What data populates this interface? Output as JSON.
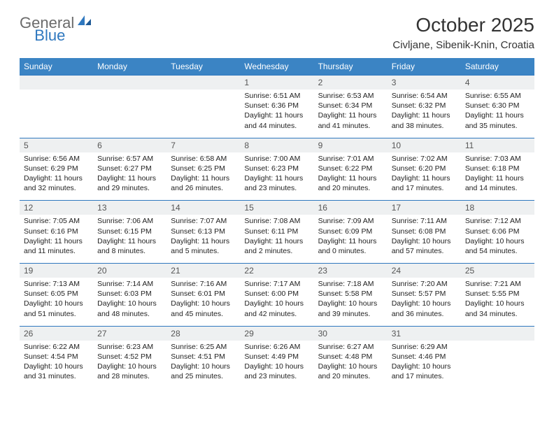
{
  "brand": {
    "part1": "General",
    "part2": "Blue"
  },
  "title": "October 2025",
  "location": "Civljane, Sibenik-Knin, Croatia",
  "colors": {
    "header_bg": "#3b84c4",
    "header_text": "#ffffff",
    "daynum_bg": "#eef0f1",
    "border": "#2f78bf",
    "logo_gray": "#6b6b6b",
    "logo_blue": "#2f78bf"
  },
  "weekdays": [
    "Sunday",
    "Monday",
    "Tuesday",
    "Wednesday",
    "Thursday",
    "Friday",
    "Saturday"
  ],
  "weeks": [
    {
      "nums": [
        "",
        "",
        "",
        "1",
        "2",
        "3",
        "4"
      ],
      "cells": [
        {},
        {},
        {},
        {
          "sunrise": "Sunrise: 6:51 AM",
          "sunset": "Sunset: 6:36 PM",
          "day1": "Daylight: 11 hours",
          "day2": "and 44 minutes."
        },
        {
          "sunrise": "Sunrise: 6:53 AM",
          "sunset": "Sunset: 6:34 PM",
          "day1": "Daylight: 11 hours",
          "day2": "and 41 minutes."
        },
        {
          "sunrise": "Sunrise: 6:54 AM",
          "sunset": "Sunset: 6:32 PM",
          "day1": "Daylight: 11 hours",
          "day2": "and 38 minutes."
        },
        {
          "sunrise": "Sunrise: 6:55 AM",
          "sunset": "Sunset: 6:30 PM",
          "day1": "Daylight: 11 hours",
          "day2": "and 35 minutes."
        }
      ]
    },
    {
      "nums": [
        "5",
        "6",
        "7",
        "8",
        "9",
        "10",
        "11"
      ],
      "cells": [
        {
          "sunrise": "Sunrise: 6:56 AM",
          "sunset": "Sunset: 6:29 PM",
          "day1": "Daylight: 11 hours",
          "day2": "and 32 minutes."
        },
        {
          "sunrise": "Sunrise: 6:57 AM",
          "sunset": "Sunset: 6:27 PM",
          "day1": "Daylight: 11 hours",
          "day2": "and 29 minutes."
        },
        {
          "sunrise": "Sunrise: 6:58 AM",
          "sunset": "Sunset: 6:25 PM",
          "day1": "Daylight: 11 hours",
          "day2": "and 26 minutes."
        },
        {
          "sunrise": "Sunrise: 7:00 AM",
          "sunset": "Sunset: 6:23 PM",
          "day1": "Daylight: 11 hours",
          "day2": "and 23 minutes."
        },
        {
          "sunrise": "Sunrise: 7:01 AM",
          "sunset": "Sunset: 6:22 PM",
          "day1": "Daylight: 11 hours",
          "day2": "and 20 minutes."
        },
        {
          "sunrise": "Sunrise: 7:02 AM",
          "sunset": "Sunset: 6:20 PM",
          "day1": "Daylight: 11 hours",
          "day2": "and 17 minutes."
        },
        {
          "sunrise": "Sunrise: 7:03 AM",
          "sunset": "Sunset: 6:18 PM",
          "day1": "Daylight: 11 hours",
          "day2": "and 14 minutes."
        }
      ]
    },
    {
      "nums": [
        "12",
        "13",
        "14",
        "15",
        "16",
        "17",
        "18"
      ],
      "cells": [
        {
          "sunrise": "Sunrise: 7:05 AM",
          "sunset": "Sunset: 6:16 PM",
          "day1": "Daylight: 11 hours",
          "day2": "and 11 minutes."
        },
        {
          "sunrise": "Sunrise: 7:06 AM",
          "sunset": "Sunset: 6:15 PM",
          "day1": "Daylight: 11 hours",
          "day2": "and 8 minutes."
        },
        {
          "sunrise": "Sunrise: 7:07 AM",
          "sunset": "Sunset: 6:13 PM",
          "day1": "Daylight: 11 hours",
          "day2": "and 5 minutes."
        },
        {
          "sunrise": "Sunrise: 7:08 AM",
          "sunset": "Sunset: 6:11 PM",
          "day1": "Daylight: 11 hours",
          "day2": "and 2 minutes."
        },
        {
          "sunrise": "Sunrise: 7:09 AM",
          "sunset": "Sunset: 6:09 PM",
          "day1": "Daylight: 11 hours",
          "day2": "and 0 minutes."
        },
        {
          "sunrise": "Sunrise: 7:11 AM",
          "sunset": "Sunset: 6:08 PM",
          "day1": "Daylight: 10 hours",
          "day2": "and 57 minutes."
        },
        {
          "sunrise": "Sunrise: 7:12 AM",
          "sunset": "Sunset: 6:06 PM",
          "day1": "Daylight: 10 hours",
          "day2": "and 54 minutes."
        }
      ]
    },
    {
      "nums": [
        "19",
        "20",
        "21",
        "22",
        "23",
        "24",
        "25"
      ],
      "cells": [
        {
          "sunrise": "Sunrise: 7:13 AM",
          "sunset": "Sunset: 6:05 PM",
          "day1": "Daylight: 10 hours",
          "day2": "and 51 minutes."
        },
        {
          "sunrise": "Sunrise: 7:14 AM",
          "sunset": "Sunset: 6:03 PM",
          "day1": "Daylight: 10 hours",
          "day2": "and 48 minutes."
        },
        {
          "sunrise": "Sunrise: 7:16 AM",
          "sunset": "Sunset: 6:01 PM",
          "day1": "Daylight: 10 hours",
          "day2": "and 45 minutes."
        },
        {
          "sunrise": "Sunrise: 7:17 AM",
          "sunset": "Sunset: 6:00 PM",
          "day1": "Daylight: 10 hours",
          "day2": "and 42 minutes."
        },
        {
          "sunrise": "Sunrise: 7:18 AM",
          "sunset": "Sunset: 5:58 PM",
          "day1": "Daylight: 10 hours",
          "day2": "and 39 minutes."
        },
        {
          "sunrise": "Sunrise: 7:20 AM",
          "sunset": "Sunset: 5:57 PM",
          "day1": "Daylight: 10 hours",
          "day2": "and 36 minutes."
        },
        {
          "sunrise": "Sunrise: 7:21 AM",
          "sunset": "Sunset: 5:55 PM",
          "day1": "Daylight: 10 hours",
          "day2": "and 34 minutes."
        }
      ]
    },
    {
      "nums": [
        "26",
        "27",
        "28",
        "29",
        "30",
        "31",
        ""
      ],
      "cells": [
        {
          "sunrise": "Sunrise: 6:22 AM",
          "sunset": "Sunset: 4:54 PM",
          "day1": "Daylight: 10 hours",
          "day2": "and 31 minutes."
        },
        {
          "sunrise": "Sunrise: 6:23 AM",
          "sunset": "Sunset: 4:52 PM",
          "day1": "Daylight: 10 hours",
          "day2": "and 28 minutes."
        },
        {
          "sunrise": "Sunrise: 6:25 AM",
          "sunset": "Sunset: 4:51 PM",
          "day1": "Daylight: 10 hours",
          "day2": "and 25 minutes."
        },
        {
          "sunrise": "Sunrise: 6:26 AM",
          "sunset": "Sunset: 4:49 PM",
          "day1": "Daylight: 10 hours",
          "day2": "and 23 minutes."
        },
        {
          "sunrise": "Sunrise: 6:27 AM",
          "sunset": "Sunset: 4:48 PM",
          "day1": "Daylight: 10 hours",
          "day2": "and 20 minutes."
        },
        {
          "sunrise": "Sunrise: 6:29 AM",
          "sunset": "Sunset: 4:46 PM",
          "day1": "Daylight: 10 hours",
          "day2": "and 17 minutes."
        },
        {}
      ]
    }
  ]
}
